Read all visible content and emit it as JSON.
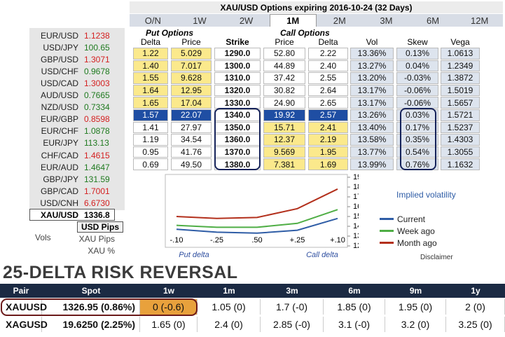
{
  "rates": [
    {
      "pair": "EUR/USD",
      "value": "1.1238",
      "color": "#d42020"
    },
    {
      "pair": "USD/JPY",
      "value": "100.65",
      "color": "#1f7a1f"
    },
    {
      "pair": "GBP/USD",
      "value": "1.3071",
      "color": "#d42020"
    },
    {
      "pair": "USD/CHF",
      "value": "0.9678",
      "color": "#1f7a1f"
    },
    {
      "pair": "USD/CAD",
      "value": "1.3003",
      "color": "#d42020"
    },
    {
      "pair": "AUD/USD",
      "value": "0.7665",
      "color": "#1f7a1f"
    },
    {
      "pair": "NZD/USD",
      "value": "0.7334",
      "color": "#1f7a1f"
    },
    {
      "pair": "EUR/GBP",
      "value": "0.8598",
      "color": "#d42020"
    },
    {
      "pair": "EUR/CHF",
      "value": "1.0878",
      "color": "#1f7a1f"
    },
    {
      "pair": "EUR/JPY",
      "value": "113.13",
      "color": "#1f7a1f"
    },
    {
      "pair": "CHF/CAD",
      "value": "1.4615",
      "color": "#d42020"
    },
    {
      "pair": "EUR/AUD",
      "value": "1.4647",
      "color": "#1f7a1f"
    },
    {
      "pair": "GBP/JPY",
      "value": "131.59",
      "color": "#1f7a1f"
    },
    {
      "pair": "GBP/CAD",
      "value": "1.7001",
      "color": "#d42020"
    },
    {
      "pair": "USD/CNH",
      "value": "6.6730",
      "color": "#d42020"
    }
  ],
  "selected_rate": {
    "pair": "XAU/USD",
    "value": "1336.8"
  },
  "unit_tab": "USD Pips",
  "vols_label": "Vols",
  "vol_options": [
    "XAU Pips",
    "XAU %"
  ],
  "options": {
    "title": "XAU/USD Options expiring 2016-10-24 (32 Days)",
    "tabs": [
      {
        "label": "O/N"
      },
      {
        "label": "1W"
      },
      {
        "label": "2W"
      },
      {
        "label": "1M",
        "selected": true
      },
      {
        "label": "2M"
      },
      {
        "label": "3M"
      },
      {
        "label": "6M"
      },
      {
        "label": "12M"
      }
    ],
    "put_header": "Put Options",
    "call_header": "Call Options",
    "columns": [
      "Delta",
      "Price",
      "Strike",
      "Price",
      "Delta",
      "Vol",
      "Skew",
      "Vega"
    ],
    "rows": [
      {
        "cells": [
          "1.22",
          "5.029",
          "1290.0",
          "52.80",
          "2.22",
          "13.36%",
          "0.13%",
          "1.0613"
        ],
        "put_fill": "#fbe98c",
        "call_fill": "#ffffff"
      },
      {
        "cells": [
          "1.40",
          "7.017",
          "1300.0",
          "44.89",
          "2.40",
          "13.27%",
          "0.04%",
          "1.2349"
        ],
        "put_fill": "#fbe98c",
        "call_fill": "#ffffff"
      },
      {
        "cells": [
          "1.55",
          "9.628",
          "1310.0",
          "37.42",
          "2.55",
          "13.20%",
          "-0.03%",
          "1.3872"
        ],
        "put_fill": "#fbe98c",
        "call_fill": "#ffffff"
      },
      {
        "cells": [
          "1.64",
          "12.95",
          "1320.0",
          "30.82",
          "2.64",
          "13.17%",
          "-0.06%",
          "1.5019"
        ],
        "put_fill": "#fbe98c",
        "call_fill": "#ffffff"
      },
      {
        "cells": [
          "1.65",
          "17.04",
          "1330.0",
          "24.90",
          "2.65",
          "13.17%",
          "-0.06%",
          "1.5657"
        ],
        "put_fill": "#fbe98c",
        "call_fill": "#ffffff"
      },
      {
        "cells": [
          "1.57",
          "22.07",
          "1340.0",
          "19.92",
          "2.57",
          "13.26%",
          "0.03%",
          "1.5721"
        ],
        "put_fill": "#1f4ea3",
        "call_fill": "#1f4ea3"
      },
      {
        "cells": [
          "1.41",
          "27.97",
          "1350.0",
          "15.71",
          "2.41",
          "13.40%",
          "0.17%",
          "1.5237"
        ],
        "put_fill": "#ffffff",
        "call_fill": "#fbe98c"
      },
      {
        "cells": [
          "1.19",
          "34.54",
          "1360.0",
          "12.37",
          "2.19",
          "13.58%",
          "0.35%",
          "1.4303"
        ],
        "put_fill": "#ffffff",
        "call_fill": "#fbe98c"
      },
      {
        "cells": [
          "0.95",
          "41.76",
          "1370.0",
          "9.569",
          "1.95",
          "13.77%",
          "0.54%",
          "1.3055"
        ],
        "put_fill": "#ffffff",
        "call_fill": "#fbe98c"
      },
      {
        "cells": [
          "0.69",
          "49.50",
          "1380.0",
          "7.381",
          "1.69",
          "13.99%",
          "0.76%",
          "1.1632"
        ],
        "put_fill": "#ffffff",
        "call_fill": "#fbe98c"
      }
    ]
  },
  "chart_data": {
    "type": "line",
    "legend_title": "Implied volatility",
    "categories": [
      "-.10",
      "-.25",
      ".50",
      "+.25",
      "+.10"
    ],
    "x_label_put": "Put delta",
    "x_label_call": "Call delta",
    "series": [
      {
        "name": "Current",
        "color": "#2f5da6",
        "values": [
          13.7,
          13.4,
          13.3,
          13.6,
          14.8
        ]
      },
      {
        "name": "Week ago",
        "color": "#4fae45",
        "values": [
          14.1,
          13.9,
          13.9,
          14.3,
          15.7
        ]
      },
      {
        "name": "Month ago",
        "color": "#b3301c",
        "values": [
          15.0,
          14.8,
          14.9,
          15.8,
          17.8
        ]
      }
    ],
    "ylim": [
      12,
      19
    ],
    "yticks": [
      {
        "value": 12,
        "label": "12%"
      },
      {
        "value": 13,
        "label": "13%"
      },
      {
        "value": 14,
        "label": "14%"
      },
      {
        "value": 15,
        "label": "15%"
      },
      {
        "value": 16,
        "label": "16%"
      },
      {
        "value": 17,
        "label": "17%"
      },
      {
        "value": 18,
        "label": "18%"
      },
      {
        "value": 19,
        "label": "19%"
      }
    ]
  },
  "disclaimer": "Disclaimer",
  "risk_reversal": {
    "title": "25-DELTA RISK REVERSAL",
    "columns": [
      "Pair",
      "Spot",
      "1w",
      "1m",
      "3m",
      "6m",
      "9m",
      "1y"
    ],
    "rows": [
      [
        "XAUUSD",
        "1326.95 (0.86%)",
        "0 (-0.6)",
        "1.05 (0)",
        "1.7 (-0)",
        "1.85 (0)",
        "1.95 (0)",
        "2 (0)"
      ],
      [
        "XAGUSD",
        "19.6250 (2.25%)",
        "1.65 (0)",
        "2.4 (0)",
        "2.85 (-0)",
        "3.1 (-0)",
        "3.2 (0)",
        "3.25 (0)"
      ]
    ]
  }
}
